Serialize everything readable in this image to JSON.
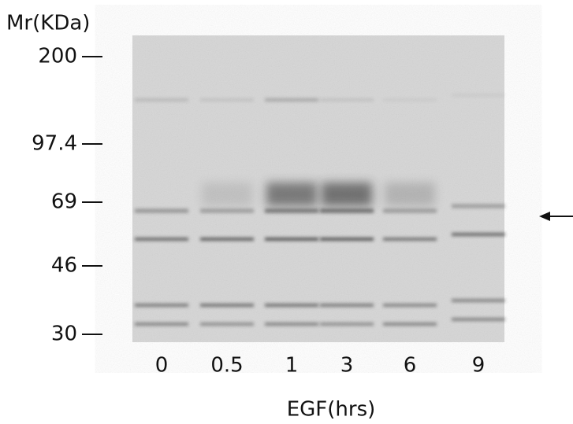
{
  "y_axis_title": "Mr(KDa)",
  "markers": [
    "200",
    "97.4",
    "69",
    "46",
    "30"
  ],
  "lanes": [
    "0",
    "0.5",
    "1",
    "3",
    "6",
    "9"
  ],
  "x_axis_title": "EGF(hrs)"
}
